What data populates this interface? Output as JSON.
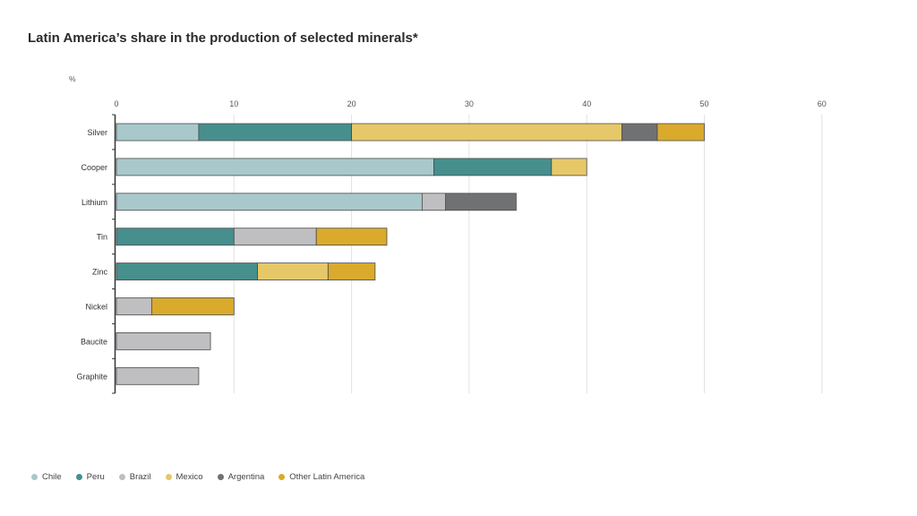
{
  "title": "Latin America’s share in the production of selected minerals*",
  "chart_data": {
    "type": "bar",
    "orientation": "horizontal",
    "stacked": true,
    "unit_label": "%",
    "xlim": [
      0,
      60
    ],
    "xticks": [
      0,
      10,
      20,
      30,
      40,
      50,
      60
    ],
    "grid": true,
    "legend_position": "bottom-left",
    "categories": [
      "Silver",
      "Cooper",
      "Lithium",
      "Tin",
      "Zinc",
      "Nickel",
      "Baucite",
      "Graphite"
    ],
    "series": [
      {
        "name": "Chile",
        "color": "#a9c8cb",
        "values": [
          7,
          27,
          26,
          0,
          0,
          0,
          0,
          0
        ]
      },
      {
        "name": "Peru",
        "color": "#468f8d",
        "values": [
          13,
          10,
          0,
          10,
          12,
          0,
          0,
          0
        ]
      },
      {
        "name": "Brazil",
        "color": "#bfbfc1",
        "values": [
          0,
          0,
          2,
          7,
          0,
          3,
          8,
          7
        ]
      },
      {
        "name": "Mexico",
        "color": "#e6c869",
        "values": [
          23,
          3,
          0,
          0,
          6,
          0,
          0,
          0
        ]
      },
      {
        "name": "Argentina",
        "color": "#707173",
        "values": [
          3,
          0,
          6,
          0,
          0,
          0,
          0,
          0
        ]
      },
      {
        "name": "Other Latin America",
        "color": "#d9aa2c",
        "values": [
          4,
          0,
          0,
          6,
          4,
          7,
          0,
          0
        ]
      }
    ]
  }
}
